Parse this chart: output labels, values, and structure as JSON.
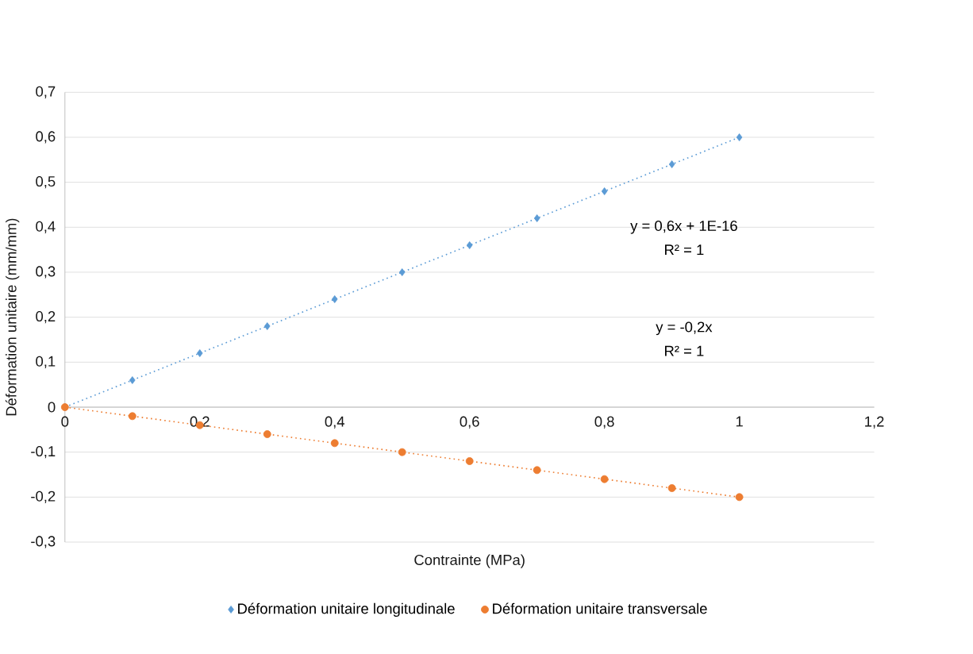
{
  "chart_data": {
    "type": "scatter",
    "xlabel": "Contrainte (MPa)",
    "ylabel": "Déformation unitaire (mm/mm)",
    "xlim": [
      0,
      1.2
    ],
    "ylim": [
      -0.3,
      0.7
    ],
    "xticks": [
      0,
      {
        "value": 0.2,
        "label": "0,2"
      },
      {
        "value": 0.4,
        "label": "0,4"
      },
      {
        "value": 0.6,
        "label": "0,6"
      },
      {
        "value": 0.8,
        "label": "0,8"
      },
      1,
      {
        "value": 1.2,
        "label": "1,2"
      }
    ],
    "yticks": [
      {
        "value": -0.3,
        "label": "-0,3"
      },
      {
        "value": -0.2,
        "label": "-0,2"
      },
      {
        "value": -0.1,
        "label": "-0,1"
      },
      0,
      {
        "value": 0.1,
        "label": "0,1"
      },
      {
        "value": 0.2,
        "label": "0,2"
      },
      {
        "value": 0.3,
        "label": "0,3"
      },
      {
        "value": 0.4,
        "label": "0,4"
      },
      {
        "value": 0.5,
        "label": "0,5"
      },
      {
        "value": 0.6,
        "label": "0,6"
      },
      {
        "value": 0.7,
        "label": "0,7"
      }
    ],
    "grid": "y",
    "legend": "bottom",
    "x": [
      0,
      0.1,
      0.2,
      0.3,
      0.4,
      0.5,
      0.6,
      0.7,
      0.8,
      0.9,
      1
    ],
    "series": [
      {
        "name": "Déformation unitaire longitudinale",
        "color": "#5b9bd5",
        "marker": "diamond",
        "values": [
          0,
          0.06,
          0.12,
          0.18,
          0.24,
          0.3,
          0.36,
          0.42,
          0.48,
          0.54,
          0.6
        ]
      },
      {
        "name": "Déformation unitaire transversale",
        "color": "#ed7d31",
        "marker": "circle",
        "values": [
          0,
          -0.02,
          -0.04,
          -0.06,
          -0.08,
          -0.1,
          -0.12,
          -0.14,
          -0.16,
          -0.18,
          -0.2
        ]
      },
      {
        "type": "line",
        "color": "#5b9bd5",
        "line_style": "dotted",
        "marker": "none",
        "values": [
          0,
          0.06,
          0.12,
          0.18,
          0.24,
          0.3,
          0.36,
          0.42,
          0.48,
          0.54,
          0.6
        ]
      },
      {
        "type": "line",
        "color": "#ed7d31",
        "line_style": "dotted",
        "marker": "none",
        "values": [
          0,
          -0.02,
          -0.04,
          -0.06,
          -0.08,
          -0.1,
          -0.12,
          -0.14,
          -0.16,
          -0.18,
          -0.2
        ]
      }
    ],
    "annotations": [
      "y = 0,6x + 1E-16",
      "R² = 1",
      "y = -0,2x",
      "R² = 1"
    ]
  }
}
